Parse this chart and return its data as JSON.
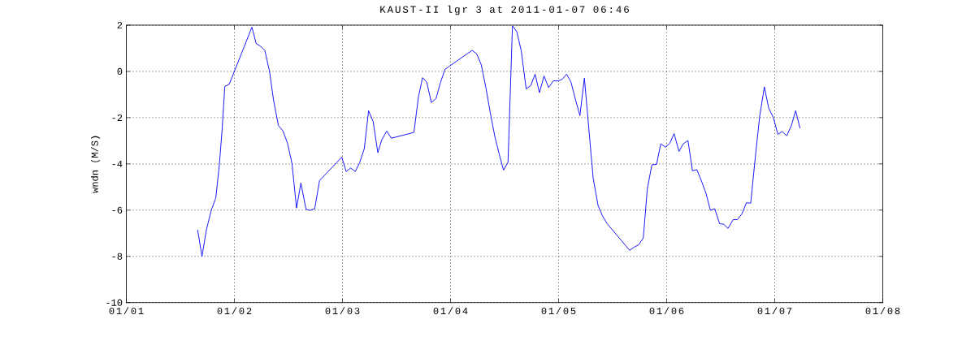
{
  "chart_data": {
    "type": "line",
    "title": "KAUST-II lgr 3 at 2011-01-07 06:46",
    "ylabel": "wndn (M/S)",
    "x": [
      "2011-01-01T15:50",
      "2011-01-01T16:48",
      "2011-01-01T17:47",
      "2011-01-01T18:52",
      "2011-01-01T19:52",
      "2011-01-01T20:40",
      "2011-01-01T21:16",
      "2011-01-01T21:52",
      "2011-01-01T22:52",
      "2011-01-02T03:53",
      "2011-01-02T04:51",
      "2011-01-02T05:48",
      "2011-01-02T06:46",
      "2011-01-02T07:48",
      "2011-01-02T08:41",
      "2011-01-02T09:46",
      "2011-01-02T10:48",
      "2011-01-02T11:48",
      "2011-01-02T12:47",
      "2011-01-02T13:48",
      "2011-01-02T14:46",
      "2011-01-02T15:55",
      "2011-01-02T16:48",
      "2011-01-02T17:50",
      "2011-01-02T18:55",
      "2011-01-02T23:51",
      "2011-01-03T00:49",
      "2011-01-03T01:49",
      "2011-01-03T02:51",
      "2011-01-03T03:49",
      "2011-01-03T04:51",
      "2011-01-03T05:48",
      "2011-01-03T06:49",
      "2011-01-03T07:51",
      "2011-01-03T08:44",
      "2011-01-03T09:50",
      "2011-01-03T10:51",
      "2011-01-03T15:52",
      "2011-01-03T16:52",
      "2011-01-03T17:47",
      "2011-01-03T18:43",
      "2011-01-03T19:45",
      "2011-01-03T20:47",
      "2011-01-03T21:47",
      "2011-01-03T22:46",
      "2011-01-03T23:47",
      "2011-01-04T04:47",
      "2011-01-04T05:48",
      "2011-01-04T06:49",
      "2011-01-04T07:51",
      "2011-01-04T08:48",
      "2011-01-04T09:50",
      "2011-01-04T10:48",
      "2011-01-04T11:46",
      "2011-01-04T12:46",
      "2011-01-04T13:45",
      "2011-01-04T14:43",
      "2011-01-04T15:43",
      "2011-01-04T16:48",
      "2011-01-04T17:50",
      "2011-01-04T18:47",
      "2011-01-04T19:45",
      "2011-01-04T20:46",
      "2011-01-04T21:47",
      "2011-01-04T22:49",
      "2011-01-04T23:51",
      "2011-01-05T00:45",
      "2011-01-05T01:47",
      "2011-01-05T02:44",
      "2011-01-05T03:46",
      "2011-01-05T04:44",
      "2011-01-05T05:44",
      "2011-01-05T07:41",
      "2011-01-05T08:46",
      "2011-01-05T09:46",
      "2011-01-05T10:48",
      "2011-01-05T15:47",
      "2011-01-05T16:42",
      "2011-01-05T17:47",
      "2011-01-05T18:49",
      "2011-01-05T19:42",
      "2011-01-05T20:43",
      "2011-01-05T21:45",
      "2011-01-05T22:42",
      "2011-01-05T23:44",
      "2011-01-06T00:42",
      "2011-01-06T01:39",
      "2011-01-06T02:44",
      "2011-01-06T03:42",
      "2011-01-06T04:44",
      "2011-01-06T05:44",
      "2011-01-06T06:42",
      "2011-01-06T07:44",
      "2011-01-06T08:44",
      "2011-01-06T09:43",
      "2011-01-06T10:41",
      "2011-01-06T11:46",
      "2011-01-06T12:40",
      "2011-01-06T13:38",
      "2011-01-06T14:46",
      "2011-01-06T15:43",
      "2011-01-06T16:45",
      "2011-01-06T17:43",
      "2011-01-06T18:40",
      "2011-01-06T19:42",
      "2011-01-06T20:40",
      "2011-01-06T21:42",
      "2011-01-06T22:39",
      "2011-01-06T23:41",
      "2011-01-07T00:42",
      "2011-01-07T01:39",
      "2011-01-07T02:41",
      "2011-01-07T03:42",
      "2011-01-07T04:39",
      "2011-01-07T05:37"
    ],
    "series": [
      {
        "color": "#0000ff",
        "values": [
          -6.85,
          -8.0,
          -6.85,
          -6.0,
          -5.48,
          -4.02,
          -2.52,
          -0.65,
          -0.55,
          1.91,
          1.2,
          1.09,
          0.9,
          0.0,
          -1.23,
          -2.34,
          -2.58,
          -3.11,
          -3.98,
          -5.91,
          -4.83,
          -5.97,
          -6.01,
          -5.94,
          -4.72,
          -3.71,
          -4.33,
          -4.18,
          -4.33,
          -3.95,
          -3.34,
          -1.7,
          -2.17,
          -3.51,
          -2.96,
          -2.58,
          -2.89,
          -2.64,
          -1.11,
          -0.27,
          -0.47,
          -1.35,
          -1.17,
          -0.47,
          0.09,
          0.23,
          0.91,
          0.76,
          0.29,
          -0.7,
          -1.76,
          -2.81,
          -3.57,
          -4.27,
          -3.93,
          1.97,
          1.72,
          0.88,
          -0.76,
          -0.61,
          -0.12,
          -0.92,
          -0.2,
          -0.7,
          -0.41,
          -0.41,
          -0.35,
          -0.12,
          -0.45,
          -1.23,
          -1.91,
          -0.29,
          -4.63,
          -5.8,
          -6.26,
          -6.59,
          -7.74,
          -7.61,
          -7.5,
          -7.2,
          -5.09,
          -4.04,
          -4.02,
          -3.13,
          -3.28,
          -3.11,
          -2.69,
          -3.46,
          -3.13,
          -2.99,
          -4.3,
          -4.25,
          -4.74,
          -5.27,
          -6.01,
          -5.94,
          -6.59,
          -6.61,
          -6.79,
          -6.41,
          -6.41,
          -6.15,
          -5.68,
          -5.7,
          -3.69,
          -1.93,
          -0.67,
          -1.58,
          -1.99,
          -2.72,
          -2.6,
          -2.78,
          -2.34,
          -1.7,
          -2.46
        ]
      }
    ],
    "xlim": [
      "2011-01-01",
      "2011-01-08"
    ],
    "xticks": [
      {
        "value": "2011-01-01",
        "label": "01/01"
      },
      {
        "value": "2011-01-02",
        "label": "01/02"
      },
      {
        "value": "2011-01-03",
        "label": "01/03"
      },
      {
        "value": "2011-01-04",
        "label": "01/04"
      },
      {
        "value": "2011-01-05",
        "label": "01/05"
      },
      {
        "value": "2011-01-06",
        "label": "01/06"
      },
      {
        "value": "2011-01-07",
        "label": "01/07"
      },
      {
        "value": "2011-01-08",
        "label": "01/08"
      }
    ],
    "ylim": [
      -10,
      2
    ],
    "yticks": [
      -10,
      -8,
      -6,
      -4,
      -2,
      0,
      2
    ],
    "grid": true
  }
}
